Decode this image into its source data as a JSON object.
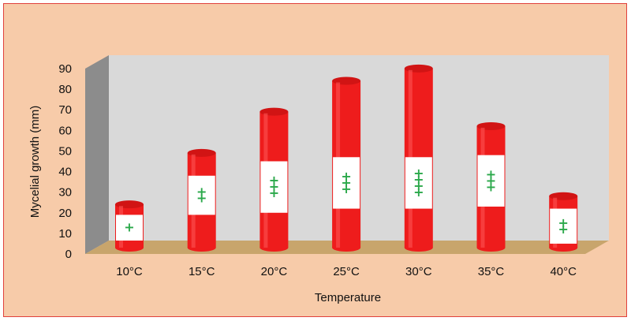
{
  "colors": {
    "background": "#f7cba9",
    "border": "#e0403c",
    "back_wall": "#d9d9d9",
    "side_wall": "#8c8c8c",
    "floor": "#c8a56c",
    "bar": "#ee1c1c",
    "label_box": "#ffffff",
    "plus": "#2aa84a"
  },
  "chart_data": {
    "type": "bar",
    "style": "3d-cylinder",
    "xlabel": "Temperature",
    "ylabel": "Mycelial  growth (mm)",
    "ylim": [
      0,
      90
    ],
    "yticks": [
      "0",
      "10",
      "20",
      "30",
      "40",
      "50",
      "60",
      "70",
      "80",
      "90"
    ],
    "grid": false,
    "categories": [
      "10°C",
      "15°C",
      "20°C",
      "25°C",
      "30°C",
      "35°C",
      "40°C"
    ],
    "values": [
      21,
      46,
      66,
      81,
      87,
      59,
      25
    ],
    "annotations": [
      "+",
      "++",
      "+++",
      "+++",
      "++++",
      "+++",
      "++"
    ]
  }
}
